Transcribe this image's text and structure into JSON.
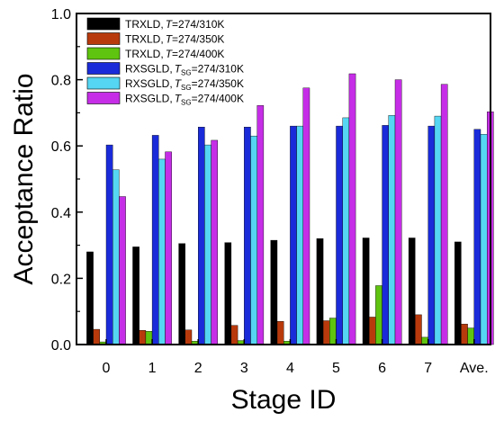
{
  "chart_data": {
    "type": "bar",
    "xlabel": "Stage ID",
    "ylabel": "Acceptance Ratio",
    "ylim": [
      0,
      1.0
    ],
    "yticks": [
      "0.0",
      "0.2",
      "0.4",
      "0.6",
      "0.8",
      "1.0"
    ],
    "categories": [
      "0",
      "1",
      "2",
      "3",
      "4",
      "5",
      "6",
      "7",
      "Ave."
    ],
    "legend_position": "top-left",
    "grid": false,
    "series": [
      {
        "name": "TRXLD, T=274/310K",
        "legend": {
          "pre": "TRXLD,",
          "italic": "T",
          "sub": "",
          "post": "=274/310K"
        },
        "color": "#000000",
        "values": [
          0.28,
          0.295,
          0.305,
          0.308,
          0.315,
          0.32,
          0.322,
          0.322,
          0.31
        ]
      },
      {
        "name": "TRXLD, T=274/350K",
        "legend": {
          "pre": "TRXLD,",
          "italic": "T",
          "sub": "",
          "post": "=274/350K"
        },
        "color": "#b83a0c",
        "values": [
          0.046,
          0.043,
          0.044,
          0.058,
          0.07,
          0.072,
          0.083,
          0.09,
          0.062
        ]
      },
      {
        "name": "TRXLD, T=274/400K",
        "legend": {
          "pre": "TRXLD,",
          "italic": "T",
          "sub": "",
          "post": "=274/400K"
        },
        "color": "#5fc40f",
        "values": [
          0.008,
          0.04,
          0.01,
          0.012,
          0.01,
          0.08,
          0.178,
          0.022,
          0.05
        ]
      },
      {
        "name": "RXSGLD, TSG=274/310K",
        "legend": {
          "pre": "RXSGLD,",
          "italic": "T",
          "sub": "SG",
          "post": "=274/310K"
        },
        "color": "#1a2bd9",
        "values": [
          0.603,
          0.632,
          0.657,
          0.657,
          0.66,
          0.66,
          0.662,
          0.66,
          0.65
        ]
      },
      {
        "name": "RXSGLD, TSG=274/350K",
        "legend": {
          "pre": "RXSGLD,",
          "italic": "T",
          "sub": "SG",
          "post": "=274/350K"
        },
        "color": "#55d6f2",
        "values": [
          0.528,
          0.56,
          0.603,
          0.63,
          0.66,
          0.685,
          0.692,
          0.69,
          0.635
        ]
      },
      {
        "name": "RXSGLD, TSG=274/400K",
        "legend": {
          "pre": "RXSGLD,",
          "italic": "T",
          "sub": "SG",
          "post": "=274/400K"
        },
        "color": "#c52ee6",
        "values": [
          0.447,
          0.582,
          0.617,
          0.722,
          0.775,
          0.818,
          0.8,
          0.786,
          0.703
        ]
      }
    ]
  }
}
